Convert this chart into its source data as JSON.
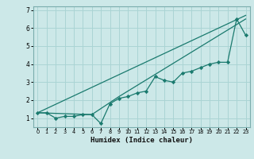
{
  "xlabel": "Humidex (Indice chaleur)",
  "bg_color": "#cce8e8",
  "line_color": "#1a7a6e",
  "grid_color": "#aad4d4",
  "xlim": [
    -0.5,
    23.5
  ],
  "ylim": [
    0.5,
    7.2
  ],
  "xticks": [
    0,
    1,
    2,
    3,
    4,
    5,
    6,
    7,
    8,
    9,
    10,
    11,
    12,
    13,
    14,
    15,
    16,
    17,
    18,
    19,
    20,
    21,
    22,
    23
  ],
  "yticks": [
    1,
    2,
    3,
    4,
    5,
    6,
    7
  ],
  "line1_x": [
    0,
    1,
    2,
    3,
    4,
    5,
    6,
    7,
    8,
    9,
    10,
    11,
    12,
    13,
    14,
    15,
    16,
    17,
    18,
    19,
    20,
    21,
    22,
    23
  ],
  "line1_y": [
    1.3,
    1.3,
    1.0,
    1.1,
    1.1,
    1.2,
    1.2,
    0.7,
    1.8,
    2.1,
    2.2,
    2.4,
    2.5,
    3.3,
    3.1,
    3.0,
    3.5,
    3.6,
    3.8,
    4.0,
    4.1,
    4.1,
    6.5,
    5.6
  ],
  "line2_x": [
    0,
    23
  ],
  "line2_y": [
    1.3,
    6.7
  ],
  "line3_x": [
    0,
    6,
    9,
    23
  ],
  "line3_y": [
    1.3,
    1.2,
    2.2,
    6.5
  ]
}
